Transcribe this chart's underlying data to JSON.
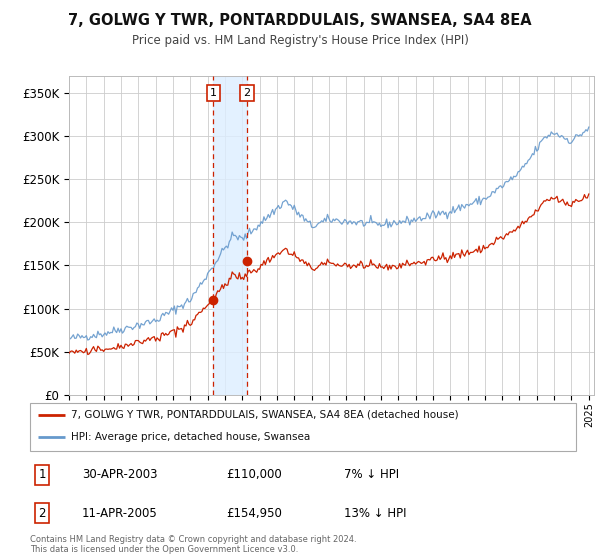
{
  "title": "7, GOLWG Y TWR, PONTARDDULAIS, SWANSEA, SA4 8EA",
  "subtitle": "Price paid vs. HM Land Registry's House Price Index (HPI)",
  "ylabel_ticks": [
    "£0",
    "£50K",
    "£100K",
    "£150K",
    "£200K",
    "£250K",
    "£300K",
    "£350K"
  ],
  "ytick_vals": [
    0,
    50000,
    100000,
    150000,
    200000,
    250000,
    300000,
    350000
  ],
  "ylim": [
    0,
    370000
  ],
  "xlim_start": 1995.0,
  "xlim_end": 2025.3,
  "hpi_color": "#6699cc",
  "price_color": "#cc2200",
  "sale1_date_num": 2003.33,
  "sale1_price": 110000,
  "sale2_date_num": 2005.28,
  "sale2_price": 154950,
  "vline_color": "#cc2200",
  "shade_color": "#ddeeff",
  "legend_label1": "7, GOLWG Y TWR, PONTARDDULAIS, SWANSEA, SA4 8EA (detached house)",
  "legend_label2": "HPI: Average price, detached house, Swansea",
  "table_row1": [
    "1",
    "30-APR-2003",
    "£110,000",
    "7% ↓ HPI"
  ],
  "table_row2": [
    "2",
    "11-APR-2005",
    "£154,950",
    "13% ↓ HPI"
  ],
  "footnote": "Contains HM Land Registry data © Crown copyright and database right 2024.\nThis data is licensed under the Open Government Licence v3.0.",
  "background_color": "#ffffff",
  "grid_color": "#cccccc"
}
